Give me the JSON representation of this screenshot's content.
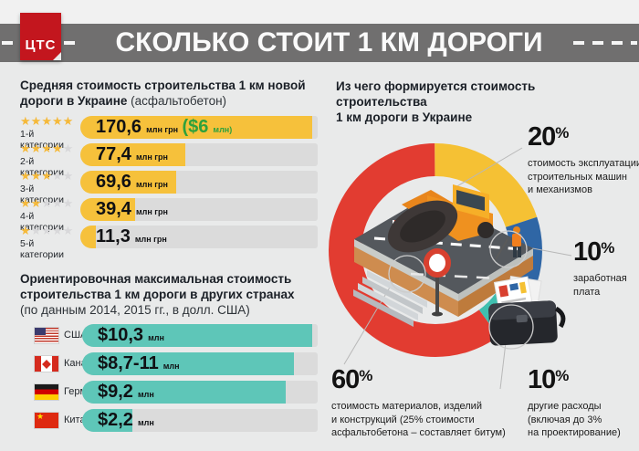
{
  "header": {
    "logo_text": "ЦТС",
    "title": "СКОЛЬКО СТОИТ 1 КМ ДОРОГИ"
  },
  "colors": {
    "band_gray": "#706F6F",
    "logo_red": "#C3161E",
    "bar_yellow": "#F6C13B",
    "bar_teal": "#5EC6B8",
    "track_gray": "#DBDBDB",
    "green_usd": "#2FA13C",
    "donut_red": "#E23C31",
    "donut_yellow": "#F5C134",
    "donut_blue": "#2F66A5",
    "donut_teal": "#3FBFAF",
    "background": "#E9EAEA"
  },
  "ukraine": {
    "title_bold": "Средняя стоимость строительства 1 км новой дороги в Украине",
    "title_normal": "(асфальтобетон)",
    "rows": [
      {
        "stars": 5,
        "label": "1-й категории",
        "value": "170,6",
        "unit": "млн грн",
        "extra_value": "($6",
        "extra_unit": "млн)",
        "fill_pct": 97.7
      },
      {
        "stars": 4,
        "label": "2-й категории",
        "value": "77,4",
        "unit": "млн грн",
        "fill_pct": 44.2
      },
      {
        "stars": 3,
        "label": "3-й категории",
        "value": "69,6",
        "unit": "млн грн",
        "fill_pct": 40.4
      },
      {
        "stars": 2,
        "label": "4-й категории",
        "value": "39,4",
        "unit": "млн грн",
        "fill_pct": 23.1
      },
      {
        "stars": 1,
        "label": "5-й категории",
        "value": "11,3",
        "unit": "млн грн",
        "fill_pct": 6.6
      }
    ]
  },
  "countries": {
    "title_bold": "Ориентировочная максимальная стоимость строительства 1 км дороги в других странах",
    "title_normal": "(по данным 2014, 2015 гг., в долл. США)",
    "rows": [
      {
        "flag": "us",
        "name": "США",
        "value": "$10,3",
        "unit": "млн",
        "fill_pct": 97.7
      },
      {
        "flag": "ca",
        "name": "Канада",
        "value": "$8,7-11",
        "unit": "млн",
        "fill_pct": 90.0
      },
      {
        "flag": "de",
        "name": "Германия",
        "value": "$9,2",
        "unit": "млн",
        "fill_pct": 86.4
      },
      {
        "flag": "cn",
        "name": "Китай",
        "value": "$2,2",
        "unit": "млн",
        "fill_pct": 21.3
      }
    ]
  },
  "pie": {
    "title_line1": "Из чего формируется стоимость строительства",
    "title_line2": "1 км дороги в Украине",
    "segments": [
      {
        "label": "стоимость эксплуатации строительных машин и механизмов",
        "pct": 20,
        "color": "#F5C134"
      },
      {
        "label": "заработная плата",
        "pct": 10,
        "color": "#2F66A5"
      },
      {
        "label": "другие расходы (включая до 3% на проектирование)",
        "pct": 10,
        "color": "#3FBFAF"
      },
      {
        "label": "стоимость материалов, изделий и конструкций (25% стоимости асфальтобетона – составляет битум)",
        "pct": 60,
        "color": "#E23C31"
      }
    ],
    "labels": [
      {
        "pct": "20",
        "sign": "%",
        "lines": [
          "стоимость эксплуатации",
          "строительных машин",
          "и механизмов"
        ]
      },
      {
        "pct": "10",
        "sign": "%",
        "lines": [
          "заработная",
          "плата"
        ]
      },
      {
        "pct": "60",
        "sign": "%",
        "lines": [
          "стоимость материалов, изделий",
          "и конструкций (25% стоимости",
          "асфальтобетона – составляет битум)"
        ]
      },
      {
        "pct": "10",
        "sign": "%",
        "lines": [
          "другие расходы",
          "(включая до 3%",
          "на проектирование)"
        ]
      }
    ]
  },
  "chart_data": [
    {
      "type": "bar",
      "title": "Средняя стоимость строительства 1 км новой дороги в Украине (асфальтобетон)",
      "categories": [
        "1-й категории",
        "2-й категории",
        "3-й категории",
        "4-й категории",
        "5-й категории"
      ],
      "values": [
        170.6,
        77.4,
        69.6,
        39.4,
        11.3
      ],
      "unit": "млн грн",
      "annotations": [
        "1-й категории ≈ $6 млн"
      ],
      "ratings_stars": [
        5,
        4,
        3,
        2,
        1
      ]
    },
    {
      "type": "bar",
      "title": "Ориентировочная максимальная стоимость строительства 1 км дороги в других странах (по данным 2014, 2015 гг., в долл. США)",
      "categories": [
        "США",
        "Канада",
        "Германия",
        "Китай"
      ],
      "values": [
        10.3,
        "8.7-11",
        9.2,
        2.2
      ],
      "unit": "млн долл. США"
    },
    {
      "type": "pie",
      "title": "Из чего формируется стоимость строительства 1 км дороги в Украине",
      "labels": [
        "стоимость эксплуатации строительных машин и механизмов",
        "заработная плата",
        "другие расходы (включая до 3% на проектирование)",
        "стоимость материалов, изделий и конструкций (25% стоимости асфальтобетона – составляет битум)"
      ],
      "values": [
        20,
        10,
        10,
        60
      ]
    }
  ]
}
